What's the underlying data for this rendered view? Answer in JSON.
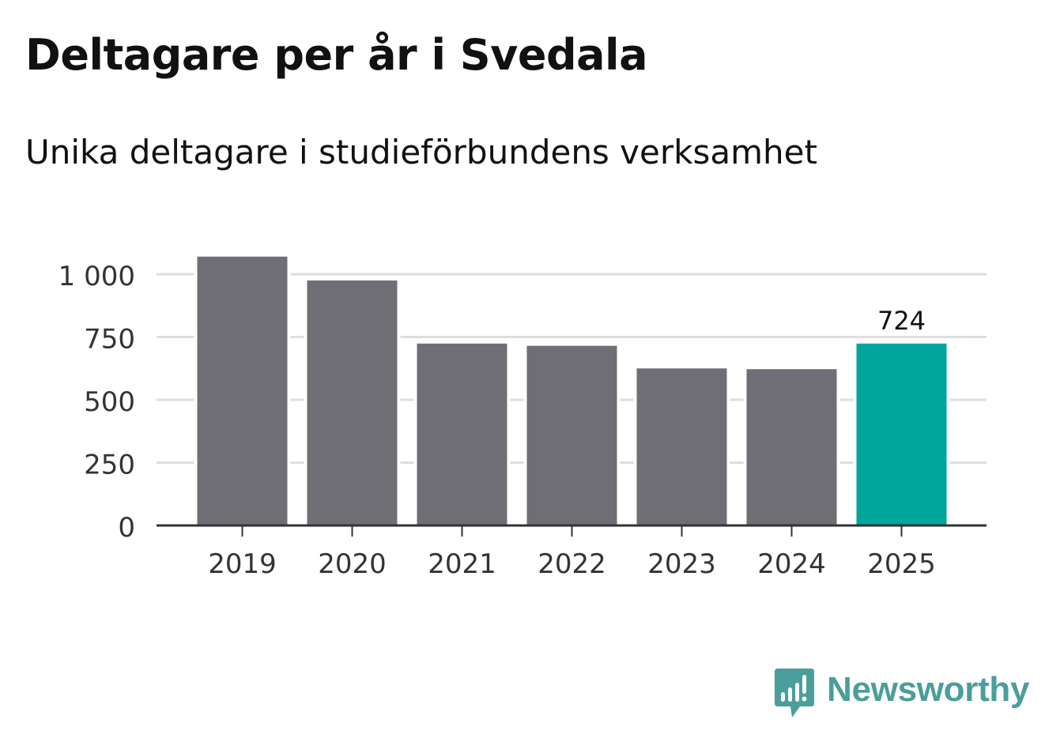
{
  "header": {
    "title": "Deltagare per år i Svedala",
    "subtitle": "Unika deltagare i studieförbundens verksamhet"
  },
  "brand": {
    "name": "Newsworthy",
    "icon": "newsworthy-logo-icon",
    "color": "#4a9e9b"
  },
  "chart_data": {
    "type": "bar",
    "title": "Deltagare per år i Svedala",
    "subtitle": "Unika deltagare i studieförbundens verksamhet",
    "xlabel": "",
    "ylabel": "",
    "categories": [
      "2019",
      "2020",
      "2021",
      "2022",
      "2023",
      "2024",
      "2025"
    ],
    "values": [
      1070,
      975,
      724,
      715,
      625,
      622,
      724
    ],
    "ylim": [
      0,
      1000
    ],
    "yticks": [
      0,
      250,
      500,
      750,
      1000
    ],
    "ytick_labels": [
      "0",
      "250",
      "500",
      "750",
      "1 000"
    ],
    "grid": true,
    "highlight_index": 6,
    "annotations": [
      {
        "category": "2025",
        "label": "724"
      }
    ],
    "colors": {
      "bar": "#6f6e74",
      "highlight": "#00a59b",
      "grid": "#dedede",
      "axis": "#333333",
      "text": "#333333"
    }
  }
}
